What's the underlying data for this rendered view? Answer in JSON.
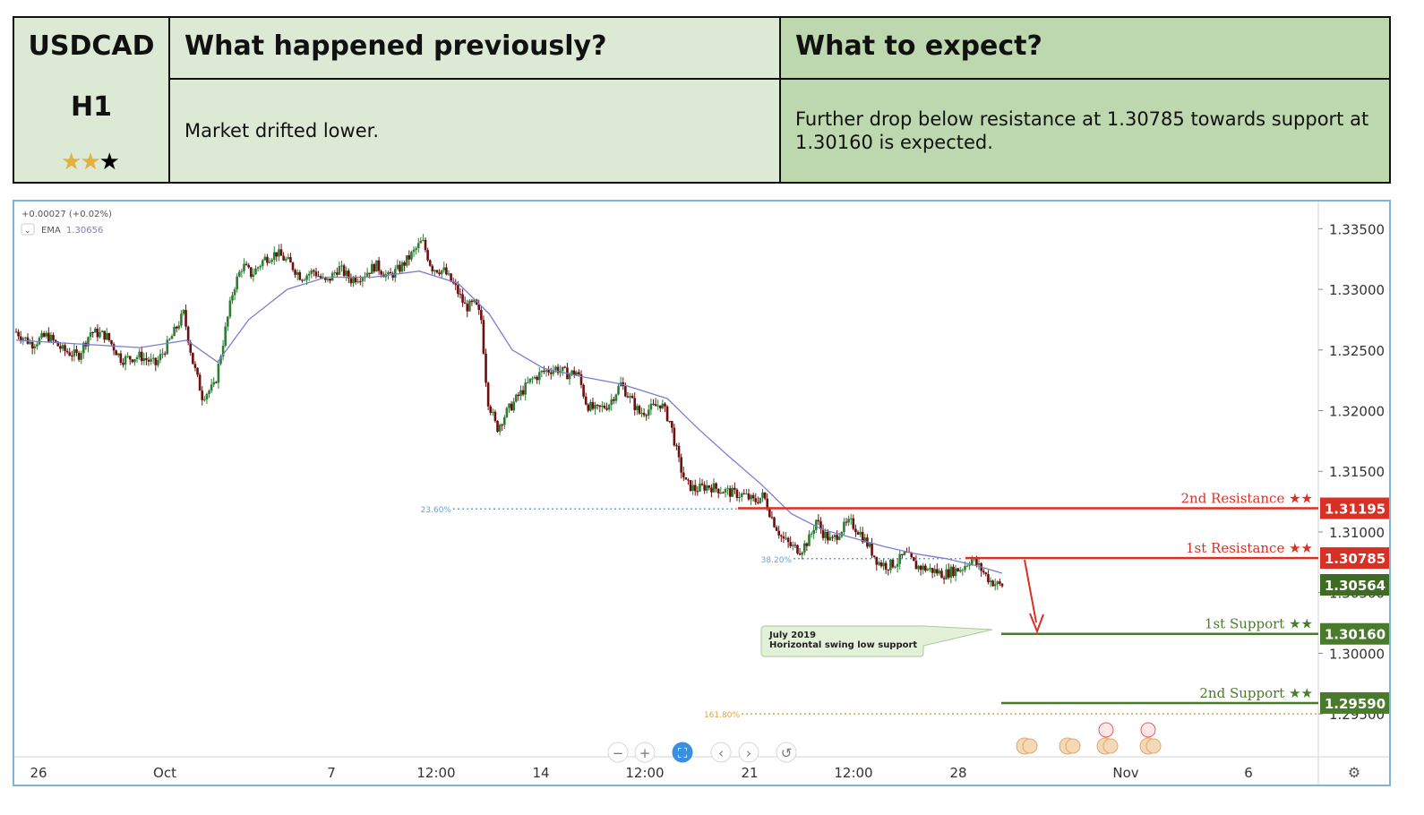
{
  "header": {
    "pair": "USDCAD",
    "timeframe": "H1",
    "stars": [
      {
        "icon": "star-gold-icon",
        "glyph": "★",
        "color": "#e0b040"
      },
      {
        "icon": "star-gold-icon",
        "glyph": "★",
        "color": "#e0b040"
      },
      {
        "icon": "star-black-icon",
        "glyph": "★",
        "color": "#000000"
      }
    ],
    "previous_title": "What happened previously?",
    "previous_text": "Market drifted lower.",
    "expect_title": "What to expect?",
    "expect_text": "Further drop below resistance at 1.30785 towards support at 1.30160 is expected."
  },
  "chart_data": {
    "type": "candlestick",
    "instrument": "USDCAD",
    "legend": {
      "change": "+0.00027 (+0.02%)",
      "ema_label": "EMA",
      "ema_value": "1.30656"
    },
    "ylim": [
      1.2925,
      1.3365
    ],
    "y_ticks": [
      "1.33500",
      "1.33000",
      "1.32500",
      "1.32000",
      "1.31500",
      "1.31000",
      "1.30500",
      "1.30000",
      "1.29500"
    ],
    "x_ticks": [
      "26",
      "Oct",
      "7",
      "12:00",
      "14",
      "12:00",
      "21",
      "12:00",
      "28",
      "Nov",
      "6"
    ],
    "price_path": [
      [
        0,
        1.3265
      ],
      [
        10,
        1.3255
      ],
      [
        20,
        1.3262
      ],
      [
        30,
        1.325
      ],
      [
        40,
        1.3245
      ],
      [
        48,
        1.3265
      ],
      [
        58,
        1.3262
      ],
      [
        68,
        1.3242
      ],
      [
        80,
        1.3245
      ],
      [
        90,
        1.3238
      ],
      [
        98,
        1.3255
      ],
      [
        108,
        1.328
      ],
      [
        114,
        1.324
      ],
      [
        120,
        1.3212
      ],
      [
        128,
        1.322
      ],
      [
        134,
        1.326
      ],
      [
        140,
        1.33
      ],
      [
        146,
        1.332
      ],
      [
        152,
        1.3312
      ],
      [
        160,
        1.3325
      ],
      [
        168,
        1.333
      ],
      [
        176,
        1.3322
      ],
      [
        184,
        1.331
      ],
      [
        192,
        1.3315
      ],
      [
        200,
        1.3305
      ],
      [
        208,
        1.3318
      ],
      [
        216,
        1.3308
      ],
      [
        224,
        1.3312
      ],
      [
        232,
        1.332
      ],
      [
        240,
        1.331
      ],
      [
        248,
        1.3318
      ],
      [
        256,
        1.333
      ],
      [
        262,
        1.334
      ],
      [
        268,
        1.3318
      ],
      [
        276,
        1.3315
      ],
      [
        284,
        1.33
      ],
      [
        290,
        1.3285
      ],
      [
        296,
        1.3288
      ],
      [
        300,
        1.3275
      ],
      [
        304,
        1.321
      ],
      [
        310,
        1.3185
      ],
      [
        316,
        1.3198
      ],
      [
        324,
        1.3212
      ],
      [
        332,
        1.3225
      ],
      [
        340,
        1.3232
      ],
      [
        348,
        1.3235
      ],
      [
        356,
        1.323
      ],
      [
        362,
        1.3232
      ],
      [
        368,
        1.3205
      ],
      [
        374,
        1.32
      ],
      [
        382,
        1.3205
      ],
      [
        390,
        1.3222
      ],
      [
        396,
        1.321
      ],
      [
        402,
        1.3198
      ],
      [
        410,
        1.3202
      ],
      [
        416,
        1.3206
      ],
      [
        422,
        1.319
      ],
      [
        428,
        1.3155
      ],
      [
        432,
        1.314
      ],
      [
        438,
        1.3135
      ],
      [
        446,
        1.3138
      ],
      [
        454,
        1.3135
      ],
      [
        462,
        1.3132
      ],
      [
        470,
        1.313
      ],
      [
        476,
        1.3125
      ],
      [
        482,
        1.313
      ],
      [
        488,
        1.311
      ],
      [
        494,
        1.3095
      ],
      [
        500,
        1.3088
      ],
      [
        506,
        1.3085
      ],
      [
        512,
        1.3095
      ],
      [
        516,
        1.311
      ],
      [
        520,
        1.31
      ],
      [
        526,
        1.3092
      ],
      [
        532,
        1.3102
      ],
      [
        538,
        1.3108
      ],
      [
        544,
        1.31
      ],
      [
        550,
        1.3088
      ],
      [
        556,
        1.3075
      ],
      [
        562,
        1.3072
      ],
      [
        568,
        1.3075
      ],
      [
        574,
        1.3082
      ],
      [
        580,
        1.3072
      ],
      [
        586,
        1.307
      ],
      [
        592,
        1.3068
      ],
      [
        598,
        1.3065
      ],
      [
        604,
        1.3068
      ],
      [
        610,
        1.307
      ],
      [
        616,
        1.3078
      ],
      [
        622,
        1.307
      ],
      [
        628,
        1.306
      ],
      [
        634,
        1.3056
      ]
    ],
    "ema_path": [
      [
        0,
        1.3258
      ],
      [
        40,
        1.3255
      ],
      [
        80,
        1.3252
      ],
      [
        110,
        1.3258
      ],
      [
        130,
        1.324
      ],
      [
        150,
        1.3275
      ],
      [
        175,
        1.33
      ],
      [
        200,
        1.331
      ],
      [
        230,
        1.331
      ],
      [
        260,
        1.3315
      ],
      [
        285,
        1.3305
      ],
      [
        305,
        1.328
      ],
      [
        320,
        1.325
      ],
      [
        340,
        1.3235
      ],
      [
        365,
        1.3228
      ],
      [
        390,
        1.3222
      ],
      [
        420,
        1.321
      ],
      [
        440,
        1.3185
      ],
      [
        460,
        1.3162
      ],
      [
        480,
        1.314
      ],
      [
        500,
        1.3115
      ],
      [
        520,
        1.3102
      ],
      [
        540,
        1.3095
      ],
      [
        560,
        1.3088
      ],
      [
        580,
        1.3082
      ],
      [
        600,
        1.3078
      ],
      [
        620,
        1.3072
      ],
      [
        636,
        1.3066
      ]
    ],
    "fib_levels": [
      {
        "label": "23.60%",
        "value": 1.3119,
        "color": "#6aa2cc"
      },
      {
        "label": "38.20%",
        "value": 1.3078,
        "color": "#6aa2cc"
      },
      {
        "label": "161.80%",
        "value": 1.295,
        "color": "#d6a646"
      }
    ],
    "levels": [
      {
        "name": "2nd Resistance ★★",
        "value": 1.31195,
        "display": "1.31195",
        "color": "#d93025"
      },
      {
        "name": "1st Resistance ★★",
        "value": 1.30785,
        "display": "1.30785",
        "color": "#d93025"
      },
      {
        "name": "1st Support ★★",
        "value": 1.3016,
        "display": "1.30160",
        "color": "#4a7a2c"
      },
      {
        "name": "2nd Support ★★",
        "value": 1.2959,
        "display": "1.29590",
        "color": "#4a7a2c"
      }
    ],
    "current_price": {
      "value": 1.30564,
      "display": "1.30564",
      "color": "#3f6b22"
    },
    "annotation": {
      "line1": "July 2019",
      "line2": "Horizontal swing low support"
    },
    "toolbar": [
      {
        "icon": "zoom-out-icon",
        "glyph": "−"
      },
      {
        "icon": "zoom-in-icon",
        "glyph": "+"
      },
      {
        "icon": "fullscreen-icon",
        "glyph": "⛶"
      },
      {
        "icon": "scroll-left-icon",
        "glyph": "‹"
      },
      {
        "icon": "scroll-right-icon",
        "glyph": "›"
      },
      {
        "icon": "reset-icon",
        "glyph": "↺"
      }
    ],
    "settings_icon": "⚙",
    "colors": {
      "up": "#2e7d32",
      "down": "#6b0f0f",
      "ema": "#7a7ed0",
      "resistance": "#d93025",
      "support": "#4a7a2c"
    }
  }
}
